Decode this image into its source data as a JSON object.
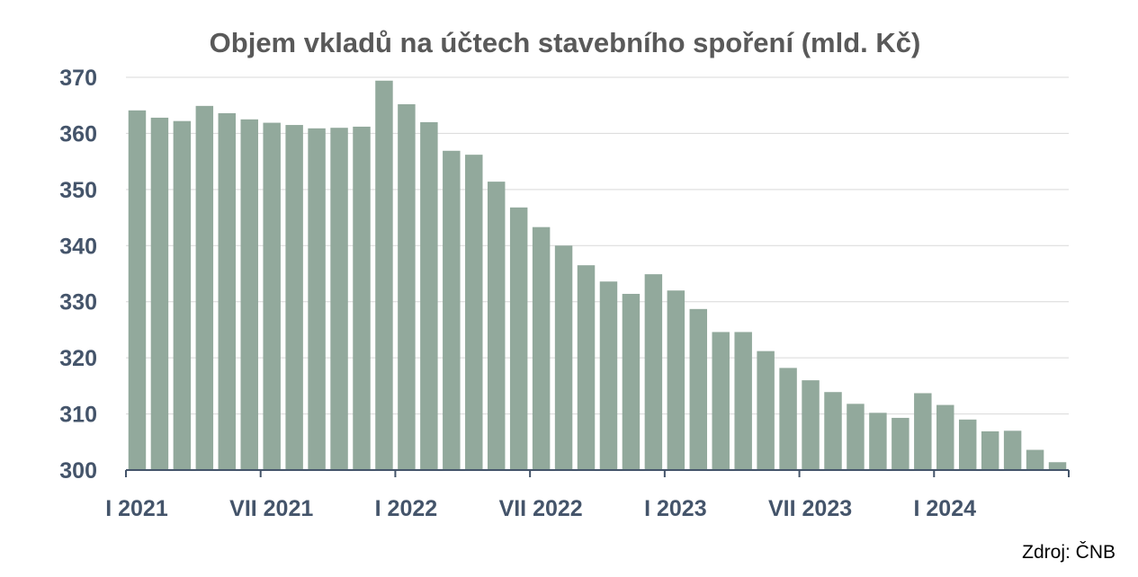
{
  "chart_data": {
    "type": "bar",
    "title": "Objem vkladů na účtech stavebního spoření (mld. Kč)",
    "source": "Zdroj: ČNB",
    "ylim": [
      300,
      370
    ],
    "yticks": [
      300,
      310,
      320,
      330,
      340,
      350,
      360,
      370
    ],
    "grid": true,
    "bar_color": "#92a99c",
    "x_tick_labels": [
      {
        "label": "I 2021",
        "index": 0
      },
      {
        "label": "VII 2021",
        "index": 6
      },
      {
        "label": "I 2022",
        "index": 12
      },
      {
        "label": "VII 2022",
        "index": 18
      },
      {
        "label": "I 2023",
        "index": 24
      },
      {
        "label": "VII 2023",
        "index": 30
      },
      {
        "label": "I 2024",
        "index": 36
      }
    ],
    "values": [
      364.1,
      362.8,
      362.2,
      364.9,
      363.6,
      362.5,
      361.9,
      361.5,
      360.9,
      361.0,
      361.2,
      369.4,
      365.2,
      362.0,
      356.9,
      356.2,
      351.4,
      346.8,
      343.3,
      340.0,
      336.5,
      333.6,
      331.4,
      334.9,
      332.0,
      328.7,
      324.6,
      324.6,
      321.2,
      318.2,
      316.0,
      313.9,
      311.8,
      310.2,
      309.3,
      313.7,
      311.6,
      309.0,
      306.9,
      307.0,
      303.6,
      301.4
    ]
  }
}
